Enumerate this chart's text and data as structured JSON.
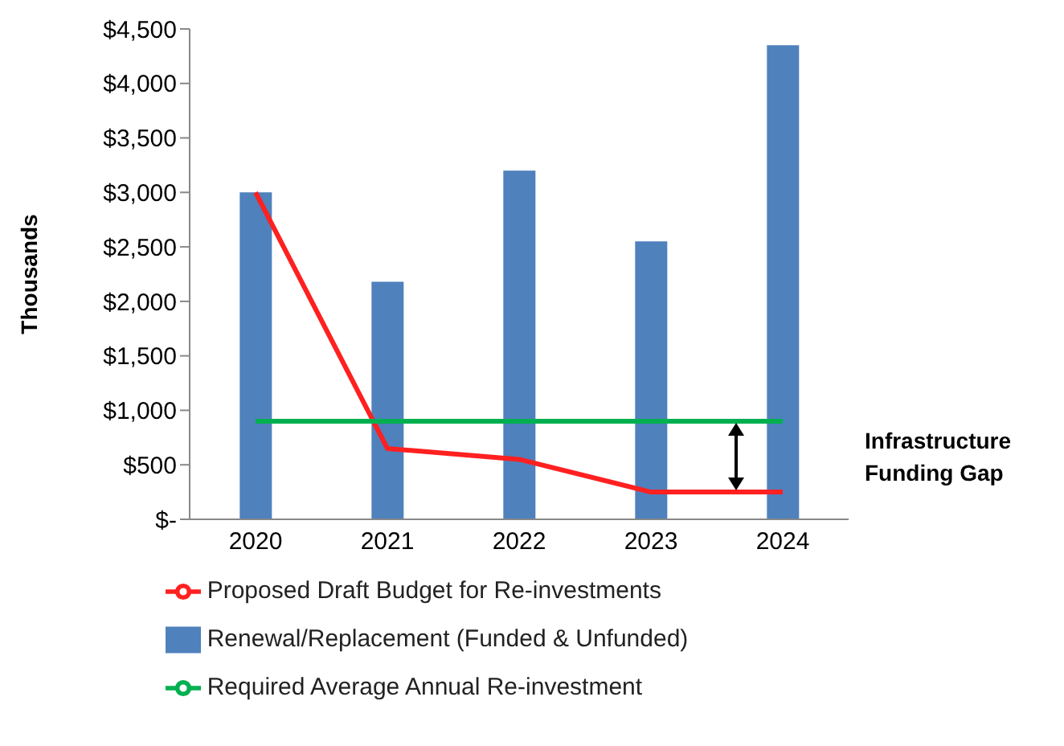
{
  "chart_data": {
    "type": "bar",
    "ylabel": "Thousands",
    "categories": [
      "2020",
      "2021",
      "2022",
      "2023",
      "2024"
    ],
    "series": [
      {
        "name": "Renewal/Replacement (Funded & Unfunded)",
        "color": "#4f81bd",
        "values": [
          3000,
          2180,
          3200,
          2550,
          4350
        ]
      },
      {
        "name": "Proposed Draft Budget for Re-investments",
        "type": "line",
        "color": "#ff2020",
        "values": [
          3000,
          650,
          550,
          250,
          250
        ]
      },
      {
        "name": "Required Average Annual Re-investment",
        "type": "line",
        "color": "#00b050",
        "values": [
          900,
          900,
          900,
          900,
          900
        ]
      }
    ],
    "ylim": [
      0,
      4500
    ],
    "yticks": [
      {
        "value": 0,
        "label": "$-"
      },
      {
        "value": 500,
        "label": "$500"
      },
      {
        "value": 1000,
        "label": "$1,000"
      },
      {
        "value": 1500,
        "label": "$1,500"
      },
      {
        "value": 2000,
        "label": "$2,000"
      },
      {
        "value": 2500,
        "label": "$2,500"
      },
      {
        "value": 3000,
        "label": "$3,000"
      },
      {
        "value": 3500,
        "label": "$3,500"
      },
      {
        "value": 4000,
        "label": "$4,000"
      },
      {
        "value": 4500,
        "label": "$4,500"
      }
    ],
    "grid": false,
    "legend": "bottom",
    "marker": "none",
    "annotations": [
      "Infrastructure Funding Gap"
    ]
  }
}
